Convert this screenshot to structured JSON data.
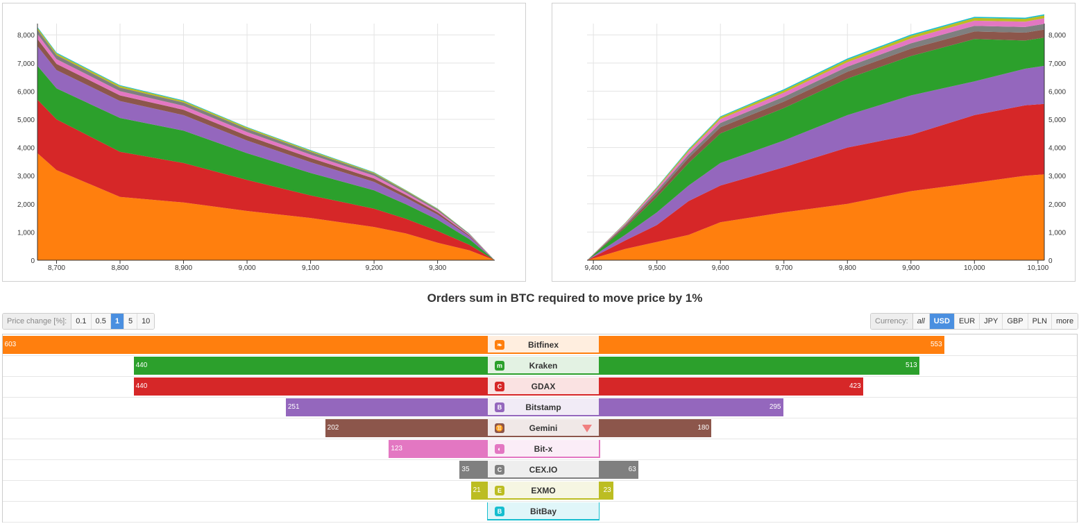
{
  "colors": {
    "Bitfinex": "#ff7f0e",
    "Kraken": "#2ca02c",
    "GDAX": "#d62728",
    "Bitstamp": "#9467bd",
    "Gemini": "#8c564b",
    "Bit-x": "#e377c2",
    "CEX.IO": "#7f7f7f",
    "EXMO": "#bcbd22",
    "BitBay": "#17becf"
  },
  "chart_data": [
    {
      "type": "area",
      "side": "bids",
      "xlim": [
        8670,
        9390
      ],
      "ylim": [
        0,
        8400
      ],
      "xticks": [
        8700,
        8800,
        8900,
        9000,
        9100,
        9200,
        9300
      ],
      "xtick_labels": [
        "8,700",
        "8,800",
        "8,900",
        "9,000",
        "9,100",
        "9,200",
        "9,300"
      ],
      "yticks": [
        0,
        1000,
        2000,
        3000,
        4000,
        5000,
        6000,
        7000,
        8000
      ],
      "ytick_labels": [
        "0",
        "1,000",
        "2,000",
        "3,000",
        "4,000",
        "5,000",
        "6,000",
        "7,000",
        "8,000"
      ],
      "x": [
        8670,
        8700,
        8800,
        8900,
        9000,
        9100,
        9200,
        9250,
        9300,
        9350,
        9390
      ],
      "series": [
        {
          "name": "Bitfinex",
          "values": [
            3800,
            3200,
            2250,
            2050,
            1750,
            1500,
            1180,
            950,
            620,
            350,
            0
          ]
        },
        {
          "name": "GDAX",
          "values": [
            1900,
            1800,
            1600,
            1400,
            1100,
            800,
            650,
            520,
            420,
            200,
            0
          ]
        },
        {
          "name": "Kraken",
          "values": [
            1200,
            1100,
            1200,
            1150,
            950,
            800,
            650,
            520,
            400,
            200,
            0
          ]
        },
        {
          "name": "Bitstamp",
          "values": [
            700,
            650,
            600,
            550,
            450,
            380,
            300,
            230,
            180,
            90,
            0
          ]
        },
        {
          "name": "Gemini",
          "values": [
            250,
            220,
            200,
            190,
            170,
            150,
            120,
            100,
            80,
            40,
            0
          ]
        },
        {
          "name": "Bit-x",
          "values": [
            180,
            170,
            150,
            140,
            130,
            120,
            100,
            80,
            60,
            30,
            0
          ]
        },
        {
          "name": "CEX.IO",
          "values": [
            150,
            140,
            130,
            120,
            110,
            100,
            80,
            60,
            50,
            25,
            0
          ]
        },
        {
          "name": "EXMO",
          "values": [
            70,
            60,
            60,
            50,
            50,
            40,
            30,
            25,
            20,
            10,
            0
          ]
        },
        {
          "name": "BitBay",
          "values": [
            30,
            30,
            25,
            25,
            20,
            20,
            15,
            10,
            8,
            5,
            0
          ]
        }
      ]
    },
    {
      "type": "area",
      "side": "asks",
      "xlim": [
        9390,
        10110
      ],
      "ylim": [
        0,
        8400
      ],
      "xticks": [
        9400,
        9500,
        9600,
        9700,
        9800,
        9900,
        10000,
        10100
      ],
      "xtick_labels": [
        "9,400",
        "9,500",
        "9,600",
        "9,700",
        "9,800",
        "9,900",
        "10,000",
        "10,100"
      ],
      "yticks": [
        0,
        1000,
        2000,
        3000,
        4000,
        5000,
        6000,
        7000,
        8000
      ],
      "ytick_labels": [
        "0",
        "1,000",
        "2,000",
        "3,000",
        "4,000",
        "5,000",
        "6,000",
        "7,000",
        "8,000"
      ],
      "x": [
        9390,
        9450,
        9500,
        9550,
        9600,
        9700,
        9800,
        9900,
        10000,
        10080,
        10110
      ],
      "series": [
        {
          "name": "Bitfinex",
          "values": [
            0,
            400,
            650,
            900,
            1350,
            1700,
            2000,
            2450,
            2750,
            3000,
            3050
          ]
        },
        {
          "name": "GDAX",
          "values": [
            0,
            300,
            600,
            1200,
            1300,
            1600,
            2000,
            2000,
            2400,
            2500,
            2500
          ]
        },
        {
          "name": "Bitstamp",
          "values": [
            0,
            200,
            450,
            550,
            800,
            950,
            1150,
            1400,
            1200,
            1300,
            1350
          ]
        },
        {
          "name": "Kraken",
          "values": [
            0,
            250,
            550,
            800,
            1050,
            1150,
            1300,
            1400,
            1500,
            1000,
            1000
          ]
        },
        {
          "name": "Gemini",
          "values": [
            0,
            60,
            120,
            180,
            220,
            230,
            240,
            260,
            270,
            280,
            290
          ]
        },
        {
          "name": "CEX.IO",
          "values": [
            0,
            50,
            90,
            120,
            150,
            170,
            180,
            190,
            200,
            200,
            200
          ]
        },
        {
          "name": "Bit-x",
          "values": [
            0,
            40,
            80,
            110,
            140,
            150,
            160,
            170,
            180,
            190,
            200
          ]
        },
        {
          "name": "EXMO",
          "values": [
            0,
            20,
            40,
            60,
            70,
            80,
            90,
            100,
            100,
            100,
            100
          ]
        },
        {
          "name": "BitBay",
          "values": [
            0,
            10,
            20,
            30,
            30,
            40,
            40,
            40,
            40,
            40,
            40
          ]
        }
      ]
    },
    {
      "type": "bar",
      "title": "Orders sum in BTC required to move price by 1%",
      "categories": [
        "Bitfinex",
        "Kraken",
        "GDAX",
        "Bitstamp",
        "Gemini",
        "Bit-x",
        "CEX.IO",
        "EXMO",
        "BitBay"
      ],
      "series": [
        {
          "values": [
            603,
            440,
            440,
            251,
            202,
            123,
            35,
            21,
            1
          ]
        },
        {
          "values": [
            553,
            513,
            423,
            295,
            180,
            2,
            63,
            23,
            1
          ]
        }
      ],
      "value_labels_left": [
        "603",
        "440",
        "440",
        "251",
        "202",
        "123",
        "35",
        "21",
        ""
      ],
      "value_labels_right": [
        "553",
        "513",
        "423",
        "295",
        "180",
        "2",
        "63",
        "23",
        ""
      ],
      "xlim": [
        0,
        810
      ]
    }
  ],
  "controls": {
    "price_change_label": "Price change [%]:",
    "price_change_options": [
      "0.1",
      "0.5",
      "1",
      "5",
      "10"
    ],
    "price_change_active": "1",
    "currency_label": "Currency:",
    "currency_options": [
      "all",
      "USD",
      "EUR",
      "JPY",
      "GBP",
      "PLN",
      "more"
    ],
    "currency_active": "USD"
  },
  "exchanges": [
    {
      "name": "Bitfinex",
      "icon": "leaf-icon"
    },
    {
      "name": "Kraken",
      "icon": "kraken-icon"
    },
    {
      "name": "GDAX",
      "icon": "coinbase-c-icon"
    },
    {
      "name": "Bitstamp",
      "icon": "bitstamp-icon"
    },
    {
      "name": "Gemini",
      "icon": "gemini-icon",
      "marker": "triangle-down-icon"
    },
    {
      "name": "Bit-x",
      "icon": "bitx-icon"
    },
    {
      "name": "CEX.IO",
      "icon": "cexio-icon"
    },
    {
      "name": "EXMO",
      "icon": "exmo-icon"
    },
    {
      "name": "BitBay",
      "icon": "bitbay-icon"
    }
  ]
}
